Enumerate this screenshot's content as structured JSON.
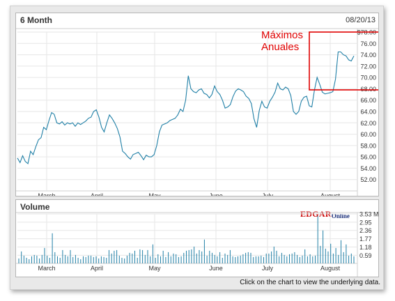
{
  "price_panel": {
    "title": "6 Month",
    "date": "08/20/13"
  },
  "volume_panel": {
    "title": "Volume"
  },
  "annotation": {
    "line1": "Máximos",
    "line2": "Anuales",
    "color": "#e00000"
  },
  "logo": {
    "part1": "EDGAR",
    "part2": "Online"
  },
  "footer": "Click on the chart to view the underlying data.",
  "colors": {
    "price_line": "#1f7fa6",
    "volume_bars": "#1f7fa6",
    "grid": "#e6e6e6"
  },
  "chart_data": [
    {
      "type": "line",
      "title": "6 Month",
      "x_tick_labels": [
        "March",
        "April",
        "May",
        "June",
        "July",
        "August"
      ],
      "y_ticks": [
        "$78.00",
        "76.00",
        "74.00",
        "72.00",
        "70.00",
        "68.00",
        "66.00",
        "64.00",
        "62.00",
        "60.00",
        "58.00",
        "56.00",
        "54.00",
        "52.00"
      ],
      "ylim": [
        50.0,
        78.0
      ],
      "grid": true,
      "series": [
        {
          "values": [
            55.8,
            55.0,
            56.2,
            55.2,
            54.8,
            57.0,
            56.4,
            57.8,
            59.0,
            59.4,
            61.2,
            60.8,
            62.4,
            63.8,
            63.5,
            62.0,
            61.8,
            62.2,
            61.6,
            62.0,
            61.8,
            62.0,
            61.4,
            62.0,
            61.7,
            62.0,
            62.3,
            62.8,
            63.0,
            64.0,
            64.3,
            63.0,
            61.2,
            60.4,
            62.0,
            63.4,
            62.8,
            62.0,
            61.0,
            59.5,
            57.0,
            56.6,
            56.0,
            55.6,
            56.4,
            56.6,
            56.8,
            56.2,
            55.5,
            56.3,
            56.0,
            56.0,
            56.4,
            58.0,
            60.4,
            61.6,
            61.8,
            62.0,
            62.4,
            62.6,
            62.8,
            63.4,
            64.4,
            64.0,
            66.0,
            70.3,
            68.0,
            67.5,
            67.3,
            67.8,
            68.0,
            67.2,
            67.0,
            66.4,
            67.0,
            68.5,
            67.5,
            67.0,
            66.0,
            64.6,
            64.8,
            65.2,
            66.6,
            67.6,
            68.0,
            67.8,
            67.5,
            66.7,
            66.3,
            65.4,
            62.7,
            61.2,
            64.2,
            65.8,
            64.8,
            64.6,
            65.8,
            66.5,
            67.4,
            69.0,
            68.0,
            67.8,
            68.3,
            68.0,
            66.8,
            64.0,
            63.5,
            64.0,
            65.8,
            66.5,
            66.7,
            65.0,
            64.8,
            67.8,
            70.0,
            68.8,
            67.4,
            67.1,
            67.2,
            67.3,
            67.5,
            69.7,
            74.5,
            74.5,
            74.0,
            73.8,
            73.1,
            72.9,
            73.8
          ]
        }
      ]
    },
    {
      "type": "bar",
      "title": "Volume",
      "x_tick_labels": [
        "March",
        "April",
        "May",
        "June",
        "July",
        "August"
      ],
      "y_ticks": [
        "3.53 M",
        "2.95",
        "2.36",
        "1.77",
        "1.18",
        "0.59"
      ],
      "ylim": [
        0,
        3.53
      ],
      "y_unit": "M",
      "series": [
        {
          "values": [
            0.35,
            0.85,
            0.55,
            0.4,
            0.3,
            0.5,
            0.6,
            0.55,
            0.35,
            0.6,
            1.1,
            0.55,
            0.4,
            2.15,
            0.8,
            0.5,
            0.4,
            0.95,
            0.6,
            0.5,
            0.95,
            0.45,
            0.6,
            0.4,
            0.3,
            0.5,
            0.45,
            0.55,
            0.55,
            0.45,
            0.5,
            0.35,
            0.5,
            0.45,
            0.4,
            0.95,
            0.7,
            0.9,
            0.95,
            0.55,
            0.4,
            0.35,
            0.55,
            0.75,
            0.7,
            0.9,
            0.4,
            1.0,
            0.95,
            0.6,
            0.95,
            0.5,
            1.35,
            0.4,
            0.65,
            0.5,
            0.9,
            0.45,
            0.8,
            0.5,
            0.7,
            0.65,
            0.45,
            0.5,
            0.75,
            0.9,
            0.95,
            1.0,
            1.2,
            0.7,
            0.95,
            0.85,
            1.7,
            0.55,
            0.9,
            0.75,
            0.6,
            0.5,
            0.8,
            0.4,
            0.7,
            0.6,
            0.95,
            0.5,
            0.45,
            0.5,
            0.55,
            0.65,
            0.75,
            0.8,
            0.75,
            0.45,
            0.5,
            0.5,
            0.55,
            0.45,
            0.7,
            0.7,
            0.85,
            1.2,
            0.9,
            0.5,
            0.75,
            0.6,
            0.5,
            0.65,
            0.7,
            0.8,
            0.6,
            0.45,
            0.55,
            1.0,
            0.5,
            0.65,
            0.5,
            0.55,
            3.4,
            1.25,
            2.35,
            1.05,
            0.85,
            1.4,
            0.7,
            1.1,
            0.6,
            1.65,
            0.8,
            1.35,
            0.55,
            0.7,
            0.5
          ]
        }
      ]
    }
  ]
}
